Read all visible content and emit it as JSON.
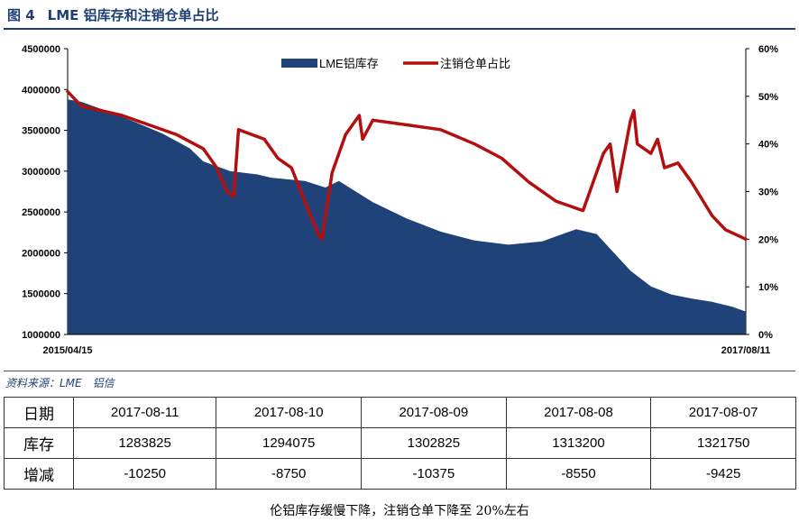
{
  "figure": {
    "number": "图 4",
    "title": "LME 铝库存和注销仓单占比"
  },
  "chart_data": {
    "type": "area+line",
    "x_start": "2015/04/15",
    "x_end": "2017/08/11",
    "y_left": {
      "ylim": [
        1000000,
        4500000
      ],
      "ticks": [
        "4500000",
        "4000000",
        "3500000",
        "3000000",
        "2500000",
        "2000000",
        "1500000",
        "1000000"
      ]
    },
    "y_right": {
      "ylim": [
        0,
        60
      ],
      "ticks": [
        "60%",
        "50%",
        "40%",
        "30%",
        "20%",
        "10%",
        "0%"
      ]
    },
    "legend": {
      "position": "top-center",
      "entries": [
        "LME铝库存",
        "注销仓单占比"
      ]
    },
    "grid": false,
    "series": [
      {
        "name": "LME铝库存",
        "type": "area",
        "color": "#1f4378",
        "axis": "left",
        "x": [
          0,
          0.02,
          0.06,
          0.1,
          0.14,
          0.18,
          0.2,
          0.24,
          0.28,
          0.3,
          0.35,
          0.38,
          0.4,
          0.45,
          0.5,
          0.55,
          0.6,
          0.65,
          0.7,
          0.72,
          0.75,
          0.78,
          0.8,
          0.83,
          0.86,
          0.89,
          0.92,
          0.95,
          0.98,
          1.0
        ],
        "values": [
          3880000,
          3850000,
          3730000,
          3600000,
          3460000,
          3280000,
          3120000,
          3000000,
          2960000,
          2920000,
          2880000,
          2800000,
          2880000,
          2620000,
          2420000,
          2260000,
          2150000,
          2100000,
          2140000,
          2200000,
          2290000,
          2230000,
          2050000,
          1780000,
          1590000,
          1490000,
          1440000,
          1400000,
          1340000,
          1280000
        ]
      },
      {
        "name": "注销仓单占比",
        "type": "line",
        "color": "#b30f0f",
        "axis": "right",
        "x": [
          0,
          0.02,
          0.08,
          0.12,
          0.16,
          0.2,
          0.22,
          0.235,
          0.245,
          0.252,
          0.29,
          0.31,
          0.32,
          0.33,
          0.355,
          0.37,
          0.375,
          0.39,
          0.41,
          0.43,
          0.435,
          0.45,
          0.5,
          0.55,
          0.6,
          0.64,
          0.68,
          0.72,
          0.76,
          0.79,
          0.8,
          0.805,
          0.81,
          0.83,
          0.835,
          0.84,
          0.86,
          0.87,
          0.88,
          0.9,
          0.92,
          0.95,
          0.97,
          1.0
        ],
        "values": [
          51,
          48,
          46,
          44,
          42,
          39,
          35,
          30,
          29,
          43,
          41,
          37,
          36,
          35,
          26,
          21,
          20,
          34,
          42,
          46,
          41,
          45,
          44,
          43,
          40,
          37,
          32,
          28,
          26,
          38,
          40,
          35,
          30,
          45,
          47,
          40,
          38,
          41,
          35,
          36,
          32,
          25,
          22,
          20
        ]
      }
    ]
  },
  "source": "资料来源：LME　铝信",
  "table": {
    "dates_label": "日期",
    "stock_label": "库存",
    "change_label": "增减",
    "dates": [
      "2017-08-11",
      "2017-08-10",
      "2017-08-09",
      "2017-08-08",
      "2017-08-07"
    ],
    "stock": [
      "1283825",
      "1294075",
      "1302825",
      "1313200",
      "1321750"
    ],
    "change": [
      "-10250",
      "-8750",
      "-10375",
      "-8550",
      "-9425"
    ]
  },
  "caption": "伦铝库存缓慢下降，注销仓单下降至 20%左右"
}
